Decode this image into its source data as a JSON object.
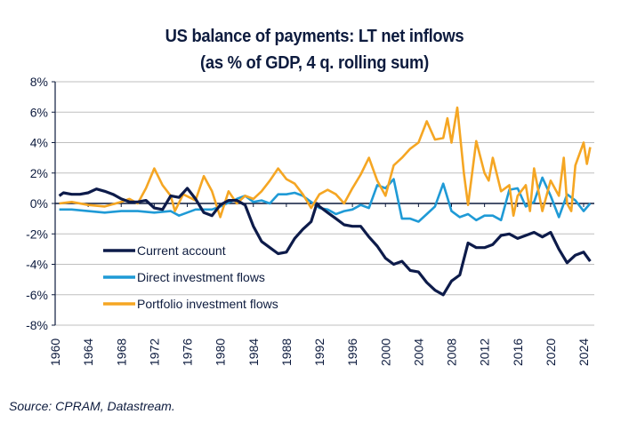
{
  "chart_data": {
    "type": "line",
    "title": "US balance of payments: LT net inflows",
    "subtitle": "(as % of GDP, 4 q. rolling sum)",
    "source": "Source: CPRAM, Datastream.",
    "xlim": [
      1960,
      2026
    ],
    "ylim": [
      -8,
      8
    ],
    "x_ticks": [
      "1960",
      "1964",
      "1968",
      "1972",
      "1976",
      "1980",
      "1984",
      "1988",
      "1992",
      "1996",
      "2000",
      "2004",
      "2008",
      "2012",
      "2016",
      "2020",
      "2024"
    ],
    "y_ticks": [
      "-8%",
      "-6%",
      "-4%",
      "-2%",
      "0%",
      "2%",
      "4%",
      "6%",
      "8%"
    ],
    "grid": true,
    "legend_position": "bottom-left",
    "series": [
      {
        "name": "Current account",
        "color": "#0d1b4a",
        "x": [
          1960.5,
          1961,
          1962,
          1963,
          1964,
          1965,
          1966,
          1967,
          1968,
          1969,
          1970,
          1971,
          1972,
          1973,
          1974,
          1975,
          1976,
          1977,
          1978,
          1979,
          1980,
          1981,
          1982,
          1983,
          1984,
          1985,
          1986,
          1987,
          1988,
          1989,
          1990,
          1991,
          1991.7,
          1992,
          1993,
          1994,
          1995,
          1996,
          1997,
          1998,
          1999,
          2000,
          2001,
          2002,
          2003,
          2004,
          2005,
          2006,
          2007,
          2008,
          2009,
          2010,
          2011,
          2012,
          2013,
          2014,
          2015,
          2016,
          2017,
          2018,
          2019,
          2020,
          2021,
          2022,
          2023,
          2024,
          2024.8
        ],
        "y": [
          0.5,
          0.7,
          0.6,
          0.6,
          0.7,
          0.95,
          0.8,
          0.6,
          0.3,
          0.1,
          0.1,
          0.2,
          -0.3,
          -0.4,
          0.5,
          0.4,
          1.0,
          0.3,
          -0.6,
          -0.8,
          -0.1,
          0.2,
          0.2,
          -0.1,
          -1.5,
          -2.5,
          -2.9,
          -3.3,
          -3.2,
          -2.3,
          -1.7,
          -1.2,
          0.0,
          -0.2,
          -0.6,
          -1.0,
          -1.4,
          -1.5,
          -1.5,
          -2.2,
          -2.8,
          -3.6,
          -4.0,
          -3.8,
          -4.4,
          -4.5,
          -5.2,
          -5.7,
          -6.0,
          -5.1,
          -4.7,
          -2.6,
          -2.9,
          -2.9,
          -2.7,
          -2.1,
          -2.0,
          -2.3,
          -2.1,
          -1.9,
          -2.2,
          -1.9,
          -3.0,
          -3.9,
          -3.4,
          -3.2,
          -3.8
        ]
      },
      {
        "name": "Direct investment flows",
        "color": "#1f9ad6",
        "x": [
          1960.5,
          1962,
          1964,
          1966,
          1968,
          1970,
          1972,
          1974,
          1975,
          1977,
          1979,
          1980,
          1982,
          1983,
          1984,
          1985,
          1986,
          1987,
          1988,
          1989,
          1990,
          1991,
          1992,
          1993,
          1994,
          1995,
          1996,
          1997,
          1998,
          1999,
          2000,
          2001,
          2002,
          2003,
          2004,
          2005,
          2006,
          2007,
          2008,
          2009,
          2010,
          2011,
          2012,
          2013,
          2014,
          2015,
          2016,
          2017,
          2018,
          2019,
          2020,
          2021,
          2022,
          2023,
          2024,
          2024.8
        ],
        "y": [
          -0.4,
          -0.4,
          -0.5,
          -0.6,
          -0.5,
          -0.5,
          -0.6,
          -0.5,
          -0.8,
          -0.4,
          -0.4,
          -0.2,
          0.3,
          0.5,
          0.1,
          0.2,
          0.0,
          0.6,
          0.6,
          0.7,
          0.5,
          0.1,
          -0.3,
          -0.4,
          -0.7,
          -0.5,
          -0.4,
          -0.1,
          -0.3,
          1.2,
          1.0,
          1.6,
          -1.0,
          -1.0,
          -1.2,
          -0.7,
          -0.2,
          1.3,
          -0.5,
          -0.9,
          -0.7,
          -1.1,
          -0.8,
          -0.8,
          -1.1,
          0.9,
          1.0,
          -0.2,
          0.1,
          1.7,
          0.5,
          -0.9,
          0.6,
          0.2,
          -0.5,
          0.0
        ]
      },
      {
        "name": "Portfolio investment flows",
        "color": "#f5a623",
        "x": [
          1960.5,
          1962,
          1964,
          1966,
          1968,
          1969,
          1970,
          1971,
          1972,
          1973,
          1974,
          1974.5,
          1975.5,
          1977,
          1978,
          1979,
          1980,
          1981,
          1982,
          1983,
          1984,
          1985,
          1986,
          1987,
          1988,
          1989,
          1990,
          1991,
          1992,
          1993,
          1994,
          1995,
          1996,
          1997,
          1998,
          1999,
          2000,
          2001,
          2002,
          2003,
          2004,
          2005,
          2006,
          2007,
          2007.5,
          2008,
          2008.7,
          2009.5,
          2010,
          2011,
          2012,
          2012.5,
          2013,
          2014,
          2015,
          2015.5,
          2016,
          2017,
          2017.5,
          2018,
          2019,
          2020,
          2021,
          2021.6,
          2022,
          2022.5,
          2023,
          2024,
          2024.4,
          2024.8
        ],
        "y": [
          0.0,
          0.1,
          -0.1,
          -0.2,
          0.1,
          0.3,
          0.0,
          1.0,
          2.3,
          1.2,
          0.5,
          -0.5,
          0.6,
          0.2,
          1.8,
          0.8,
          -0.9,
          0.8,
          0.0,
          0.5,
          0.3,
          0.8,
          1.5,
          2.3,
          1.6,
          1.3,
          0.6,
          -0.3,
          0.6,
          0.9,
          0.6,
          0.0,
          1.0,
          1.9,
          3.0,
          1.5,
          0.5,
          2.5,
          3.0,
          3.6,
          4.0,
          5.4,
          4.2,
          4.3,
          5.6,
          4.0,
          6.3,
          2.0,
          -0.1,
          4.1,
          2.0,
          1.5,
          3.0,
          0.8,
          1.2,
          -0.8,
          0.5,
          1.2,
          -0.5,
          2.3,
          -0.5,
          1.5,
          0.5,
          3.0,
          0.0,
          -0.5,
          2.5,
          4.0,
          2.6,
          3.7
        ]
      }
    ]
  }
}
